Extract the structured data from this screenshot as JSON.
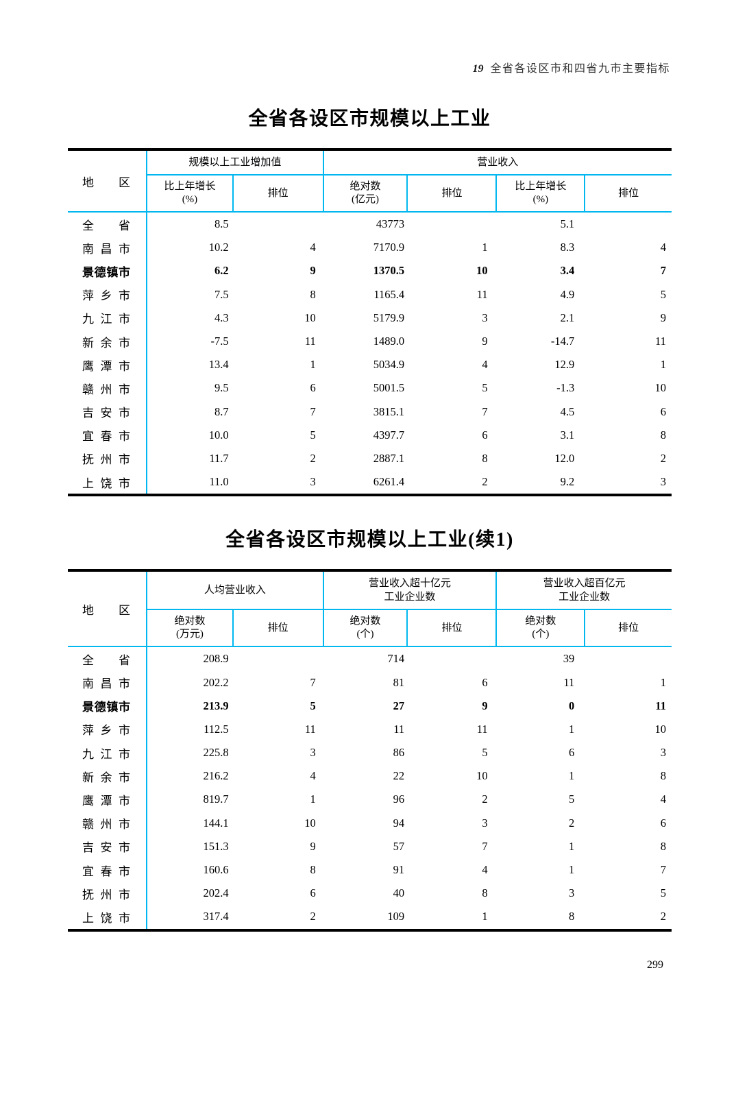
{
  "colors": {
    "grid": "#00b8ef",
    "border": "#000000"
  },
  "page": {
    "header_number": "19",
    "header_title": "全省各设区市和四省九市主要指标",
    "page_number": "299"
  },
  "table1": {
    "title": "全省各设区市规模以上工业",
    "region_header": "地 区",
    "groups": [
      {
        "label": "规模以上工业增加值"
      },
      {
        "label": "营业收入"
      }
    ],
    "subheaders": [
      "比上年增长\n(%)",
      "排位",
      "绝对数\n(亿元)",
      "排位",
      "比上年增长\n(%)",
      "排位"
    ],
    "rows": [
      {
        "region": "全 省",
        "bold": false,
        "values": [
          "8.5",
          "",
          "43773",
          "",
          "5.1",
          ""
        ]
      },
      {
        "region": "南 昌 市",
        "bold": false,
        "values": [
          "10.2",
          "4",
          "7170.9",
          "1",
          "8.3",
          "4"
        ]
      },
      {
        "region": "景德镇市",
        "bold": true,
        "values": [
          "6.2",
          "9",
          "1370.5",
          "10",
          "3.4",
          "7"
        ]
      },
      {
        "region": "萍 乡 市",
        "bold": false,
        "values": [
          "7.5",
          "8",
          "1165.4",
          "11",
          "4.9",
          "5"
        ]
      },
      {
        "region": "九 江 市",
        "bold": false,
        "values": [
          "4.3",
          "10",
          "5179.9",
          "3",
          "2.1",
          "9"
        ]
      },
      {
        "region": "新 余 市",
        "bold": false,
        "values": [
          "-7.5",
          "11",
          "1489.0",
          "9",
          "-14.7",
          "11"
        ]
      },
      {
        "region": "鹰 潭 市",
        "bold": false,
        "values": [
          "13.4",
          "1",
          "5034.9",
          "4",
          "12.9",
          "1"
        ]
      },
      {
        "region": "赣 州 市",
        "bold": false,
        "values": [
          "9.5",
          "6",
          "5001.5",
          "5",
          "-1.3",
          "10"
        ]
      },
      {
        "region": "吉 安 市",
        "bold": false,
        "values": [
          "8.7",
          "7",
          "3815.1",
          "7",
          "4.5",
          "6"
        ]
      },
      {
        "region": "宜 春 市",
        "bold": false,
        "values": [
          "10.0",
          "5",
          "4397.7",
          "6",
          "3.1",
          "8"
        ]
      },
      {
        "region": "抚 州 市",
        "bold": false,
        "values": [
          "11.7",
          "2",
          "2887.1",
          "8",
          "12.0",
          "2"
        ]
      },
      {
        "region": "上 饶 市",
        "bold": false,
        "values": [
          "11.0",
          "3",
          "6261.4",
          "2",
          "9.2",
          "3"
        ]
      }
    ]
  },
  "table2": {
    "title": "全省各设区市规模以上工业(续1)",
    "region_header": "地 区",
    "groups": [
      {
        "label": "人均营业收入"
      },
      {
        "label": "营业收入超十亿元\n工业企业数"
      },
      {
        "label": "营业收入超百亿元\n工业企业数"
      }
    ],
    "subheaders": [
      "绝对数\n(万元)",
      "排位",
      "绝对数\n(个)",
      "排位",
      "绝对数\n(个)",
      "排位"
    ],
    "rows": [
      {
        "region": "全 省",
        "bold": false,
        "values": [
          "208.9",
          "",
          "714",
          "",
          "39",
          ""
        ]
      },
      {
        "region": "南 昌 市",
        "bold": false,
        "values": [
          "202.2",
          "7",
          "81",
          "6",
          "11",
          "1"
        ]
      },
      {
        "region": "景德镇市",
        "bold": true,
        "values": [
          "213.9",
          "5",
          "27",
          "9",
          "0",
          "11"
        ]
      },
      {
        "region": "萍 乡 市",
        "bold": false,
        "values": [
          "112.5",
          "11",
          "11",
          "11",
          "1",
          "10"
        ]
      },
      {
        "region": "九 江 市",
        "bold": false,
        "values": [
          "225.8",
          "3",
          "86",
          "5",
          "6",
          "3"
        ]
      },
      {
        "region": "新 余 市",
        "bold": false,
        "values": [
          "216.2",
          "4",
          "22",
          "10",
          "1",
          "8"
        ]
      },
      {
        "region": "鹰 潭 市",
        "bold": false,
        "values": [
          "819.7",
          "1",
          "96",
          "2",
          "5",
          "4"
        ]
      },
      {
        "region": "赣 州 市",
        "bold": false,
        "values": [
          "144.1",
          "10",
          "94",
          "3",
          "2",
          "6"
        ]
      },
      {
        "region": "吉 安 市",
        "bold": false,
        "values": [
          "151.3",
          "9",
          "57",
          "7",
          "1",
          "8"
        ]
      },
      {
        "region": "宜 春 市",
        "bold": false,
        "values": [
          "160.6",
          "8",
          "91",
          "4",
          "1",
          "7"
        ]
      },
      {
        "region": "抚 州 市",
        "bold": false,
        "values": [
          "202.4",
          "6",
          "40",
          "8",
          "3",
          "5"
        ]
      },
      {
        "region": "上 饶 市",
        "bold": false,
        "values": [
          "317.4",
          "2",
          "109",
          "1",
          "8",
          "2"
        ]
      }
    ]
  }
}
